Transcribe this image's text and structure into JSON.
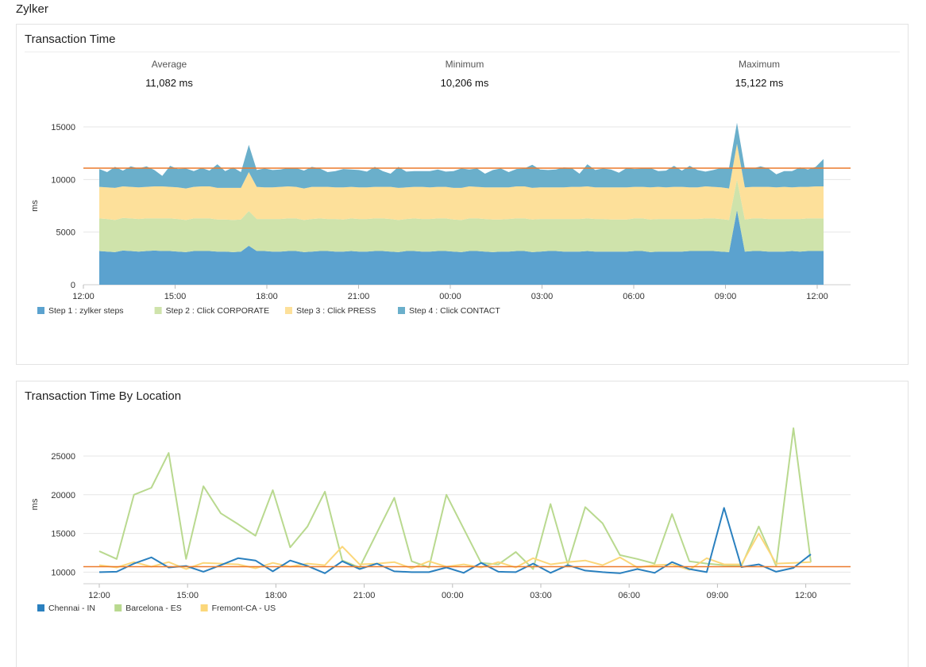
{
  "app": {
    "title": "Zylker"
  },
  "transaction_time": {
    "title": "Transaction Time",
    "stats": [
      {
        "label": "Average",
        "value": "11,082 ms"
      },
      {
        "label": "Minimum",
        "value": "10,206 ms"
      },
      {
        "label": "Maximum",
        "value": "15,122 ms"
      }
    ]
  },
  "by_location": {
    "title": "Transaction Time By Location"
  },
  "colors": {
    "step1": "#5ba2cf",
    "step2": "#cfe3ab",
    "step3": "#fde09a",
    "step4": "#6aafcb",
    "chennai": "#2a80bf",
    "barcelona": "#b9d98f",
    "fremont": "#fbd77a",
    "average_line": "#ec7a2c",
    "grid": "#e6e6e6"
  },
  "chart_data": [
    {
      "type": "area",
      "stacked": true,
      "ylabel": "ms",
      "ylim": [
        0,
        15000
      ],
      "yticks": [
        0,
        5000,
        10000,
        15000
      ],
      "xticks": [
        "12:00",
        "15:00",
        "18:00",
        "21:00",
        "00:00",
        "03:00",
        "06:00",
        "09:00",
        "12:00"
      ],
      "average_line": 11082,
      "legend_position": "bottom-left",
      "series": [
        {
          "name": "Step 1 : zylker steps",
          "color": "#5ba2cf",
          "values": [
            3200,
            3150,
            3100,
            3250,
            3200,
            3150,
            3200,
            3250,
            3200,
            3200,
            3150,
            3100,
            3200,
            3200,
            3200,
            3150,
            3150,
            3100,
            3150,
            3700,
            3200,
            3200,
            3150,
            3150,
            3200,
            3200,
            3100,
            3150,
            3200,
            3200,
            3150,
            3150,
            3200,
            3150,
            3150,
            3200,
            3200,
            3150,
            3100,
            3200,
            3200,
            3150,
            3150,
            3200,
            3200,
            3150,
            3100,
            3200,
            3200,
            3150,
            3100,
            3150,
            3150,
            3200,
            3200,
            3100,
            3150,
            3200,
            3200,
            3150,
            3150,
            3150,
            3200,
            3150,
            3150,
            3150,
            3150,
            3150,
            3200,
            3200,
            3100,
            3150,
            3150,
            3150,
            3150,
            3200,
            3200,
            3200,
            3200,
            3150,
            3100,
            7100,
            3150,
            3200,
            3200,
            3150,
            3150,
            3150,
            3200,
            3150,
            3200,
            3200,
            3200
          ]
        },
        {
          "name": "Step 2 : Click CORPORATE",
          "color": "#cfe3ab",
          "values": [
            3100,
            3100,
            3050,
            3100,
            3100,
            3100,
            3100,
            3050,
            3100,
            3100,
            3100,
            3050,
            3100,
            3100,
            3100,
            3050,
            3050,
            3050,
            3050,
            3300,
            3050,
            3050,
            3100,
            3100,
            3100,
            3100,
            3050,
            3100,
            3100,
            3050,
            3100,
            3050,
            3100,
            3100,
            3100,
            3100,
            3100,
            3100,
            3050,
            3050,
            3100,
            3100,
            3100,
            3100,
            3100,
            3050,
            3050,
            3100,
            3100,
            3100,
            3100,
            3050,
            3100,
            3100,
            3100,
            3100,
            3100,
            3050,
            3050,
            3100,
            3100,
            3100,
            3100,
            3100,
            3100,
            3050,
            3050,
            3050,
            3100,
            3100,
            3100,
            3100,
            3100,
            3100,
            3100,
            3050,
            3050,
            3100,
            3100,
            3100,
            3050,
            2900,
            3050,
            3100,
            3100,
            3100,
            3100,
            3100,
            3050,
            3100,
            3100,
            3100,
            3100
          ]
        },
        {
          "name": "Step 3 : Click PRESS",
          "color": "#fde09a",
          "values": [
            3000,
            3000,
            3050,
            3000,
            3000,
            3000,
            3000,
            3050,
            3050,
            3000,
            3000,
            3000,
            3000,
            3050,
            3050,
            3000,
            3000,
            3050,
            3000,
            3700,
            3050,
            3000,
            3000,
            3050,
            3050,
            3000,
            3000,
            3050,
            3000,
            3050,
            3000,
            3050,
            3000,
            3000,
            3000,
            3000,
            3000,
            3050,
            3050,
            3000,
            3000,
            3050,
            3000,
            3000,
            3000,
            3000,
            3050,
            3050,
            3000,
            3000,
            3050,
            3050,
            3000,
            3050,
            3050,
            3000,
            3000,
            3000,
            3000,
            3000,
            3050,
            3050,
            3050,
            3000,
            3000,
            3050,
            3050,
            3050,
            3000,
            3000,
            3050,
            3050,
            3000,
            3050,
            3050,
            3000,
            3000,
            3050,
            3000,
            3000,
            3000,
            3400,
            3050,
            3000,
            3000,
            3050,
            3000,
            3050,
            3000,
            3050,
            3000,
            3050,
            3050
          ]
        },
        {
          "name": "Step 4 : Click CONTACT",
          "color": "#6aafcb",
          "values": [
            1700,
            1450,
            2000,
            1500,
            1950,
            1800,
            1950,
            1550,
            1000,
            2000,
            1750,
            1900,
            1500,
            1750,
            1500,
            2250,
            1600,
            1950,
            1500,
            2600,
            1600,
            1800,
            1650,
            1650,
            1750,
            1800,
            1700,
            1900,
            1750,
            1400,
            1550,
            1750,
            1650,
            1650,
            1500,
            1900,
            1500,
            1250,
            2000,
            1500,
            1500,
            1500,
            1550,
            1650,
            1450,
            1600,
            1850,
            1600,
            1750,
            1300,
            1650,
            1800,
            1450,
            1650,
            1700,
            2200,
            1700,
            1650,
            1700,
            1900,
            1800,
            1250,
            2100,
            1650,
            1800,
            1700,
            1400,
            1850,
            1700,
            1750,
            1850,
            1500,
            1600,
            2000,
            1550,
            2050,
            1650,
            1400,
            1600,
            1850,
            1950,
            2000,
            1800,
            1750,
            1950,
            1750,
            1250,
            1500,
            1550,
            1850,
            1650,
            1850,
            2600
          ]
        }
      ]
    },
    {
      "type": "line",
      "ylabel": "ms",
      "ylim": [
        8500,
        29000
      ],
      "yticks": [
        10000,
        15000,
        20000,
        25000
      ],
      "xticks": [
        "12:00",
        "15:00",
        "18:00",
        "21:00",
        "00:00",
        "03:00",
        "06:00",
        "09:00",
        "12:00"
      ],
      "average_line": 10700,
      "legend_position": "bottom-left",
      "series": [
        {
          "name": "Chennai - IN",
          "color": "#2a80bf",
          "values": [
            10000,
            10050,
            11100,
            11900,
            10600,
            10800,
            10050,
            10900,
            11800,
            11500,
            10100,
            11500,
            10800,
            9850,
            11400,
            10400,
            11100,
            10100,
            10000,
            10000,
            10600,
            9900,
            11200,
            10050,
            10000,
            11100,
            9900,
            10900,
            10200,
            10000,
            9850,
            10400,
            9900,
            11300,
            10400,
            10000,
            18300,
            10650,
            11000,
            10050,
            10550,
            12300
          ]
        },
        {
          "name": "Barcelona - ES",
          "color": "#b9d98f",
          "values": [
            12700,
            11700,
            20000,
            20900,
            25400,
            11700,
            21100,
            17600,
            16200,
            14700,
            20600,
            13200,
            15900,
            20400,
            11500,
            10600,
            15100,
            19600,
            11400,
            10600,
            20000,
            15600,
            11200,
            11000,
            12600,
            10400,
            18800,
            11000,
            18400,
            16300,
            12200,
            11700,
            11100,
            17500,
            11400,
            11100,
            10900,
            10800,
            15900,
            10800,
            28600,
            11300
          ]
        },
        {
          "name": "Fremont-CA - US",
          "color": "#fbd77a",
          "values": [
            10900,
            10600,
            11300,
            10700,
            11300,
            10400,
            11200,
            11100,
            11000,
            10500,
            11200,
            10700,
            11100,
            10900,
            13300,
            11000,
            11100,
            11300,
            10500,
            11400,
            10700,
            11000,
            10600,
            11300,
            10600,
            11800,
            11000,
            11300,
            11500,
            10900,
            11900,
            10600,
            10900,
            11000,
            10300,
            11800,
            11000,
            11000,
            15000,
            11100,
            11200,
            11300
          ]
        }
      ]
    }
  ]
}
